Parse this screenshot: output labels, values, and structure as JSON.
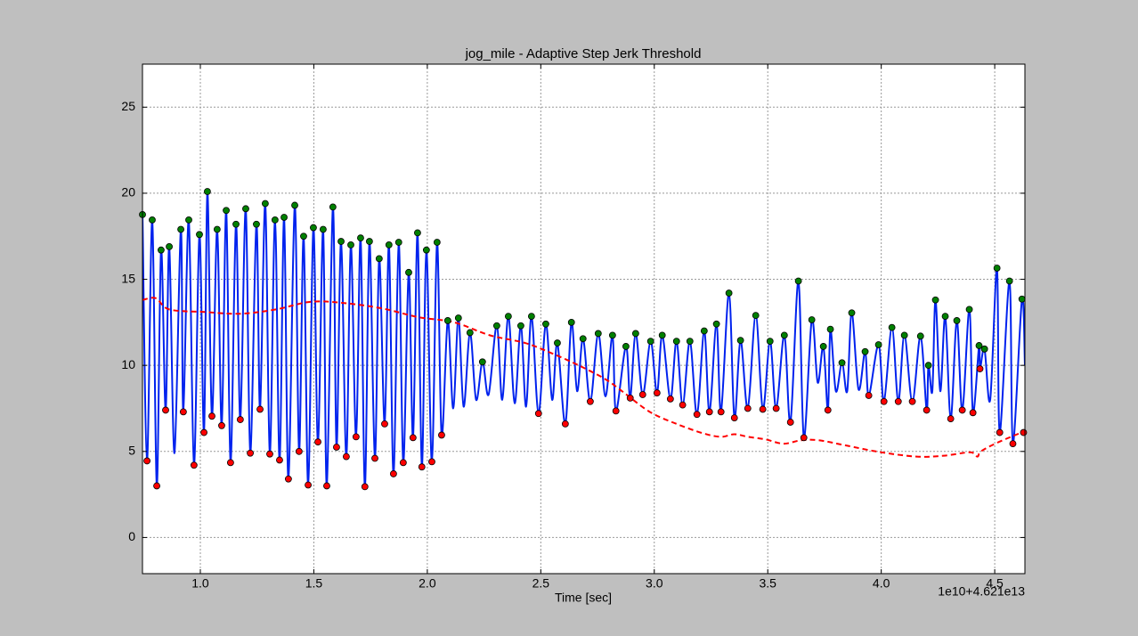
{
  "chart_data": {
    "type": "line",
    "title": "jog_mile - Adaptive Step Jerk Threshold",
    "xlabel": "Time [sec]",
    "x_offset_label": "1e10+4.621e13",
    "xlim": [
      0.745,
      4.633
    ],
    "ylim": [
      -2.1,
      27.5
    ],
    "xticks": [
      {
        "value": 1,
        "label": "1.0"
      },
      1.5,
      {
        "value": 2,
        "label": "2.0"
      },
      2.5,
      {
        "value": 3,
        "label": "3.0"
      },
      3.5,
      {
        "value": 4,
        "label": "4.0"
      },
      4.5
    ],
    "yticks": [
      0,
      5,
      10,
      15,
      20,
      25
    ],
    "grid": true,
    "series": [
      {
        "color": "#0022ee",
        "style": "line",
        "x": [
          0.745,
          0.765,
          0.788,
          0.808,
          0.827,
          0.847,
          0.863,
          0.886,
          0.914,
          0.925,
          0.949,
          0.972,
          0.996,
          1.016,
          1.031,
          1.051,
          1.074,
          1.094,
          1.114,
          1.133,
          1.157,
          1.176,
          1.2,
          1.22,
          1.247,
          1.263,
          1.286,
          1.306,
          1.329,
          1.349,
          1.369,
          1.388,
          1.416,
          1.435,
          1.455,
          1.475,
          1.498,
          1.518,
          1.541,
          1.557,
          1.584,
          1.6,
          1.62,
          1.643,
          1.663,
          1.686,
          1.706,
          1.725,
          1.745,
          1.769,
          1.788,
          1.812,
          1.831,
          1.851,
          1.874,
          1.894,
          1.918,
          1.937,
          1.957,
          1.976,
          1.996,
          2.02,
          2.043,
          2.063,
          2.09,
          2.114,
          2.137,
          2.16,
          2.188,
          2.215,
          2.243,
          2.27,
          2.306,
          2.33,
          2.357,
          2.385,
          2.412,
          2.435,
          2.459,
          2.49,
          2.522,
          2.55,
          2.573,
          2.608,
          2.635,
          2.66,
          2.686,
          2.718,
          2.753,
          2.785,
          2.816,
          2.831,
          2.875,
          2.894,
          2.918,
          2.949,
          2.984,
          3.012,
          3.035,
          3.071,
          3.098,
          3.125,
          3.157,
          3.188,
          3.22,
          3.243,
          3.274,
          3.294,
          3.329,
          3.353,
          3.38,
          3.412,
          3.447,
          3.478,
          3.51,
          3.537,
          3.573,
          3.6,
          3.635,
          3.659,
          3.694,
          3.72,
          3.745,
          3.765,
          3.776,
          3.8,
          3.827,
          3.85,
          3.87,
          3.9,
          3.929,
          3.945,
          3.988,
          4.012,
          4.047,
          4.075,
          4.102,
          4.137,
          4.173,
          4.2,
          4.208,
          4.225,
          4.239,
          4.26,
          4.282,
          4.306,
          4.333,
          4.357,
          4.388,
          4.404,
          4.431,
          4.435,
          4.455,
          4.48,
          4.51,
          4.522,
          4.565,
          4.58,
          4.62,
          4.633
        ],
        "values": [
          18.76,
          4.45,
          18.45,
          3.0,
          16.7,
          7.4,
          16.9,
          4.9,
          17.9,
          7.3,
          18.45,
          4.2,
          17.6,
          6.1,
          20.1,
          7.05,
          17.9,
          6.5,
          19.0,
          4.35,
          18.2,
          6.85,
          19.1,
          4.9,
          18.2,
          7.45,
          19.4,
          4.85,
          18.45,
          4.5,
          18.6,
          3.4,
          19.3,
          5.0,
          17.5,
          3.05,
          18.0,
          5.55,
          17.9,
          3.0,
          19.2,
          5.25,
          17.2,
          4.7,
          17.0,
          5.85,
          17.4,
          2.95,
          17.2,
          4.6,
          16.2,
          6.6,
          17.0,
          3.7,
          17.15,
          4.35,
          15.4,
          5.8,
          17.7,
          4.1,
          16.7,
          4.4,
          17.15,
          5.95,
          12.6,
          7.5,
          12.75,
          7.6,
          11.9,
          8.0,
          10.2,
          8.3,
          12.3,
          8.0,
          12.85,
          7.8,
          12.3,
          7.6,
          12.85,
          7.2,
          12.4,
          8.0,
          11.3,
          6.6,
          12.5,
          8.5,
          11.55,
          7.9,
          11.85,
          8.2,
          11.75,
          7.35,
          11.1,
          8.1,
          11.85,
          8.3,
          11.4,
          8.4,
          11.75,
          8.05,
          11.4,
          7.7,
          11.4,
          7.15,
          12.0,
          7.3,
          12.4,
          7.3,
          14.2,
          6.95,
          11.45,
          7.5,
          12.9,
          7.45,
          11.4,
          7.5,
          11.75,
          6.7,
          14.9,
          5.8,
          12.65,
          9.0,
          11.1,
          7.4,
          12.1,
          8.5,
          10.15,
          8.5,
          13.05,
          8.6,
          10.8,
          8.25,
          11.2,
          7.9,
          12.2,
          7.9,
          11.75,
          7.9,
          11.7,
          7.4,
          10.0,
          8.5,
          13.8,
          8.5,
          12.85,
          6.9,
          12.6,
          7.4,
          13.25,
          7.25,
          11.15,
          9.8,
          10.95,
          8.0,
          15.65,
          6.1,
          14.9,
          5.45,
          13.85,
          10.0
        ]
      },
      {
        "color": "#ff0000",
        "style": "dashed",
        "x": [
          0.745,
          0.804,
          0.863,
          1.02,
          1.177,
          1.333,
          1.49,
          1.647,
          1.804,
          1.961,
          2.118,
          2.275,
          2.431,
          2.549,
          2.667,
          2.784,
          2.863,
          2.98,
          3.098,
          3.216,
          3.294,
          3.353,
          3.412,
          3.49,
          3.569,
          3.647,
          3.725,
          3.843,
          4.0,
          4.157,
          4.275,
          4.392,
          4.424,
          4.439,
          4.51,
          4.627
        ],
        "values": [
          13.8,
          13.9,
          13.25,
          13.1,
          13.0,
          13.25,
          13.7,
          13.6,
          13.3,
          12.8,
          12.5,
          11.75,
          11.3,
          10.7,
          10.0,
          9.2,
          8.45,
          7.3,
          6.6,
          6.05,
          5.85,
          6.0,
          5.85,
          5.7,
          5.45,
          5.65,
          5.65,
          5.35,
          4.95,
          4.7,
          4.75,
          4.95,
          4.7,
          5.0,
          5.5,
          6.15
        ]
      },
      {
        "color": "#008000",
        "style": "markers",
        "x": [
          0.745,
          0.788,
          0.827,
          0.863,
          0.914,
          0.949,
          0.996,
          1.031,
          1.074,
          1.114,
          1.157,
          1.2,
          1.247,
          1.286,
          1.329,
          1.369,
          1.416,
          1.455,
          1.498,
          1.541,
          1.584,
          1.62,
          1.663,
          1.706,
          1.745,
          1.788,
          1.831,
          1.874,
          1.918,
          1.957,
          1.996,
          2.043,
          2.09,
          2.137,
          2.188,
          2.243,
          2.306,
          2.357,
          2.412,
          2.459,
          2.522,
          2.573,
          2.635,
          2.686,
          2.753,
          2.816,
          2.875,
          2.918,
          2.984,
          3.035,
          3.098,
          3.157,
          3.22,
          3.274,
          3.329,
          3.38,
          3.447,
          3.51,
          3.573,
          3.635,
          3.694,
          3.745,
          3.776,
          3.827,
          3.87,
          3.929,
          3.988,
          4.047,
          4.102,
          4.173,
          4.208,
          4.239,
          4.282,
          4.333,
          4.388,
          4.431,
          4.455,
          4.51,
          4.565,
          4.62
        ],
        "values": [
          18.76,
          18.45,
          16.7,
          16.9,
          17.9,
          18.45,
          17.6,
          20.1,
          17.9,
          19.0,
          18.2,
          19.1,
          18.2,
          19.4,
          18.45,
          18.6,
          19.3,
          17.5,
          18.0,
          17.9,
          19.2,
          17.2,
          17.0,
          17.4,
          17.2,
          16.2,
          17.0,
          17.15,
          15.4,
          17.7,
          16.7,
          17.15,
          12.6,
          12.75,
          11.9,
          10.2,
          12.3,
          12.85,
          12.3,
          12.85,
          12.4,
          11.3,
          12.5,
          11.55,
          11.85,
          11.75,
          11.1,
          11.85,
          11.4,
          11.75,
          11.4,
          11.4,
          12.0,
          12.4,
          14.2,
          11.45,
          12.9,
          11.4,
          11.75,
          14.9,
          12.65,
          11.1,
          12.1,
          10.15,
          13.05,
          10.8,
          11.2,
          12.2,
          11.75,
          11.7,
          10.0,
          13.8,
          12.85,
          12.6,
          13.25,
          11.15,
          10.95,
          15.65,
          14.9,
          13.85
        ]
      },
      {
        "color": "#ff0000",
        "style": "markers",
        "x": [
          0.765,
          0.808,
          0.847,
          0.925,
          0.972,
          1.016,
          1.051,
          1.094,
          1.133,
          1.176,
          1.22,
          1.263,
          1.306,
          1.349,
          1.388,
          1.435,
          1.475,
          1.518,
          1.557,
          1.6,
          1.643,
          1.686,
          1.725,
          1.769,
          1.812,
          1.851,
          1.894,
          1.937,
          1.976,
          2.02,
          2.063,
          2.49,
          2.608,
          2.718,
          2.831,
          2.894,
          2.949,
          3.012,
          3.071,
          3.125,
          3.188,
          3.243,
          3.294,
          3.353,
          3.412,
          3.478,
          3.537,
          3.6,
          3.659,
          3.765,
          3.945,
          4.012,
          4.075,
          4.137,
          4.2,
          4.306,
          4.357,
          4.404,
          4.435,
          4.522,
          4.58,
          4.627
        ],
        "values": [
          4.45,
          3.0,
          7.4,
          7.3,
          4.2,
          6.1,
          7.05,
          6.5,
          4.35,
          6.85,
          4.9,
          7.45,
          4.85,
          4.5,
          3.4,
          5.0,
          3.05,
          5.55,
          3.0,
          5.25,
          4.7,
          5.85,
          2.95,
          4.6,
          6.6,
          3.7,
          4.35,
          5.8,
          4.1,
          4.4,
          5.95,
          7.2,
          6.6,
          7.9,
          7.35,
          8.1,
          8.3,
          8.4,
          8.05,
          7.7,
          7.15,
          7.3,
          7.3,
          6.95,
          7.5,
          7.45,
          7.5,
          6.7,
          5.8,
          7.4,
          8.25,
          7.9,
          7.9,
          7.9,
          7.4,
          6.9,
          7.4,
          7.25,
          9.8,
          6.1,
          5.45,
          6.1
        ]
      }
    ]
  }
}
